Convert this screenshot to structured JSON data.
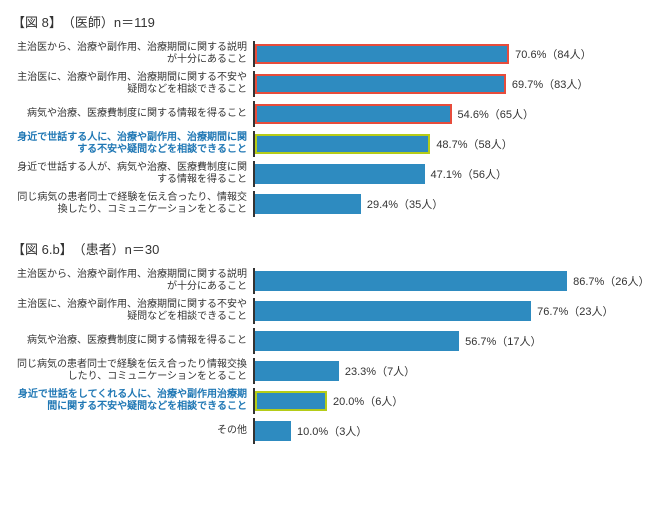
{
  "chart1": {
    "type": "bar",
    "title": "【図 8】　（医師）n＝119",
    "label_width": 235,
    "bar_area_width": 360,
    "max_value": 100,
    "bar_fill": "#2e8bc0",
    "bar_border_default": "#2e8bc0",
    "bar_border_highlight_red": "#e74c3c",
    "bar_border_highlight_green": "#b5cc18",
    "axis_color": "#333333",
    "label_fontsize": 10,
    "value_fontsize": 11,
    "highlight_label_color": "#1f77b4",
    "items": [
      {
        "label": "主治医から、治療や副作用、治療期間に関する説明が十分にあること",
        "value": 70.6,
        "count": 84,
        "border": "red",
        "highlight": false,
        "value_text": "70.6%（84人）"
      },
      {
        "label": "主治医に、治療や副作用、治療期間に関する不安や疑問などを相談できること",
        "value": 69.7,
        "count": 83,
        "border": "red",
        "highlight": false,
        "value_text": "69.7%（83人）"
      },
      {
        "label": "病気や治療、医療費制度に関する情報を得ること",
        "value": 54.6,
        "count": 65,
        "border": "red",
        "highlight": false,
        "value_text": "54.6%（65人）"
      },
      {
        "label": "身近で世話する人に、治療や副作用、治療期間に関する不安や疑問などを相談できること",
        "value": 48.7,
        "count": 58,
        "border": "green",
        "highlight": true,
        "value_text": "48.7%（58人）"
      },
      {
        "label": "身近で世話する人が、病気や治療、医療費制度に関する情報を得ること",
        "value": 47.1,
        "count": 56,
        "border": "none",
        "highlight": false,
        "value_text": "47.1%（56人）"
      },
      {
        "label": "同じ病気の患者同士で経験を伝え合ったり、情報交換したり、コミュニケーションをとること",
        "value": 29.4,
        "count": 35,
        "border": "none",
        "highlight": false,
        "value_text": "29.4%（35人）"
      }
    ]
  },
  "chart2": {
    "type": "bar",
    "title": "【図 6.b】　（患者）n＝30",
    "label_width": 235,
    "bar_area_width": 360,
    "max_value": 100,
    "bar_fill": "#2e8bc0",
    "bar_border_highlight_green": "#b5cc18",
    "axis_color": "#333333",
    "label_fontsize": 10,
    "value_fontsize": 11,
    "highlight_label_color": "#1f77b4",
    "items": [
      {
        "label": "主治医から、治療や副作用、治療期間に関する説明が十分にあること",
        "value": 86.7,
        "count": 26,
        "border": "none",
        "highlight": false,
        "value_text": "86.7%（26人）"
      },
      {
        "label": "主治医に、治療や副作用、治療期間に関する不安や疑問などを相談できること",
        "value": 76.7,
        "count": 23,
        "border": "none",
        "highlight": false,
        "value_text": "76.7%（23人）"
      },
      {
        "label": "病気や治療、医療費制度に関する情報を得ること",
        "value": 56.7,
        "count": 17,
        "border": "none",
        "highlight": false,
        "value_text": "56.7%（17人）"
      },
      {
        "label": "同じ病気の患者同士で経験を伝え合ったり情報交換したり、コミュニケーションをとること",
        "value": 23.3,
        "count": 7,
        "border": "none",
        "highlight": false,
        "value_text": "23.3%（7人）"
      },
      {
        "label": "身近で世話をしてくれる人に、治療や副作用治療期間に関する不安や疑問などを相談できること",
        "value": 20.0,
        "count": 6,
        "border": "green",
        "highlight": true,
        "value_text": "20.0%（6人）"
      },
      {
        "label": "その他",
        "value": 10.0,
        "count": 3,
        "border": "none",
        "highlight": false,
        "value_text": "10.0%（3人）"
      }
    ]
  }
}
